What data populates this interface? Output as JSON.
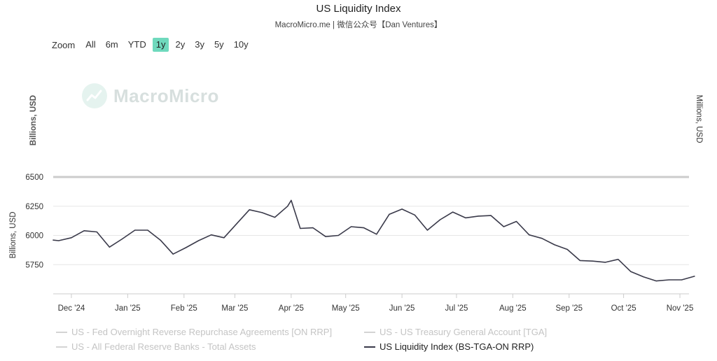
{
  "header": {
    "title": "US Liquidity Index",
    "subtitle": "MacroMicro.me | 微信公众号【Dan Ventures】"
  },
  "zoom": {
    "label": "Zoom",
    "options": [
      "All",
      "6m",
      "YTD",
      "1y",
      "2y",
      "3y",
      "5y",
      "10y"
    ],
    "active": "1y"
  },
  "watermark": {
    "text": "MacroMicro"
  },
  "axes": {
    "top_left_label": "Billions, USD",
    "top_right_label": "Millions, USD",
    "main_left_label": "Billions, USD"
  },
  "colors": {
    "series": "#3a3a4a",
    "accent": "#6fd9bd",
    "grid": "#e6e6e6",
    "navigator": "#cccccc"
  },
  "legend": [
    {
      "label": "US - Fed Overnight Reverse Repurchase Agreements [ON RRP]",
      "visible": false
    },
    {
      "label": "US - US Treasury General Account [TGA]",
      "visible": false
    },
    {
      "label": "US - All Federal Reserve Banks - Total Assets",
      "visible": false
    },
    {
      "label": "US Liquidity Index (BS-TGA-ON RRP)",
      "visible": true
    }
  ],
  "chart_data": {
    "type": "line",
    "title": "US Liquidity Index",
    "ylabel": "Billions, USD",
    "ylim": [
      5500,
      6500
    ],
    "yticks": [
      5750,
      6000,
      6250,
      6500
    ],
    "xlim": [
      0,
      350
    ],
    "x_tick_labels": [
      "Dec '24",
      "Jan '25",
      "Feb '25",
      "Mar '25",
      "Apr '25",
      "May '25",
      "Jun '25",
      "Jul '25",
      "Aug '25",
      "Sep '25",
      "Oct '25",
      "Nov '25"
    ],
    "x_tick_positions": [
      10,
      41,
      72,
      100,
      131,
      161,
      192,
      222,
      253,
      284,
      314,
      345
    ],
    "series": [
      {
        "name": "US Liquidity Index (BS-TGA-ON RRP)",
        "x": [
          0,
          3,
          10,
          17,
          24,
          31,
          38,
          45,
          52,
          59,
          66,
          73,
          80,
          87,
          94,
          101,
          108,
          115,
          122,
          129,
          131,
          136,
          143,
          150,
          157,
          164,
          171,
          178,
          185,
          192,
          199,
          206,
          213,
          220,
          227,
          234,
          241,
          248,
          255,
          262,
          269,
          276,
          283,
          290,
          297,
          304,
          311,
          318,
          325,
          332,
          339,
          346,
          353
        ],
        "values": [
          5960,
          5955,
          5980,
          6040,
          6030,
          5900,
          5970,
          6045,
          6045,
          5960,
          5840,
          5895,
          5955,
          6005,
          5980,
          6100,
          6220,
          6195,
          6155,
          6250,
          6300,
          6060,
          6065,
          5990,
          6000,
          6075,
          6065,
          6010,
          6180,
          6225,
          6175,
          6045,
          6135,
          6200,
          6150,
          6165,
          6170,
          6075,
          6120,
          6005,
          5975,
          5920,
          5880,
          5785,
          5780,
          5770,
          5795,
          5690,
          5645,
          5610,
          5620,
          5620,
          5650
        ]
      }
    ]
  }
}
